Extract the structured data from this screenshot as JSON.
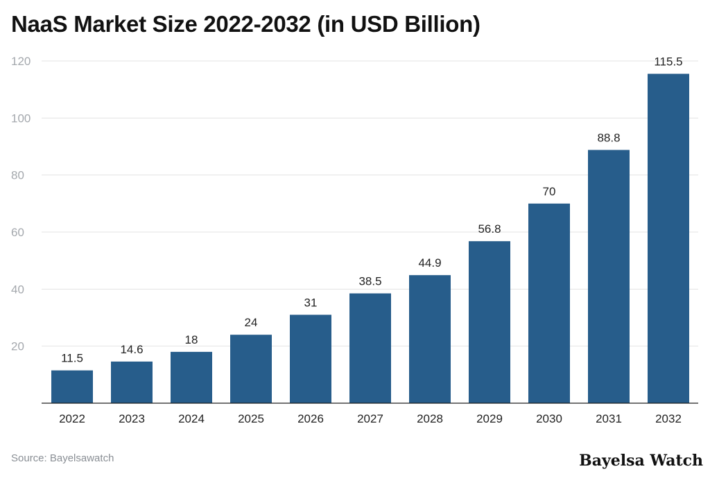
{
  "chart_data": {
    "type": "bar",
    "title": "NaaS Market Size 2022-2032 (in USD Billion)",
    "categories": [
      "2022",
      "2023",
      "2024",
      "2025",
      "2026",
      "2027",
      "2028",
      "2029",
      "2030",
      "2031",
      "2032"
    ],
    "values": [
      11.5,
      14.6,
      18,
      24,
      31,
      38.5,
      44.9,
      56.8,
      70,
      88.8,
      115.5
    ],
    "data_labels": [
      "11.5",
      "14.6",
      "18",
      "24",
      "31",
      "38.5",
      "44.9",
      "56.8",
      "70",
      "88.8",
      "115.5"
    ],
    "xlabel": "",
    "ylabel": "",
    "ylim": [
      0,
      120
    ],
    "yticks": [
      20,
      40,
      60,
      80,
      100,
      120
    ],
    "grid": true,
    "bar_color": "#275d8b"
  },
  "source": "Source: Bayelsawatch",
  "brand": "Bayelsa Watch"
}
